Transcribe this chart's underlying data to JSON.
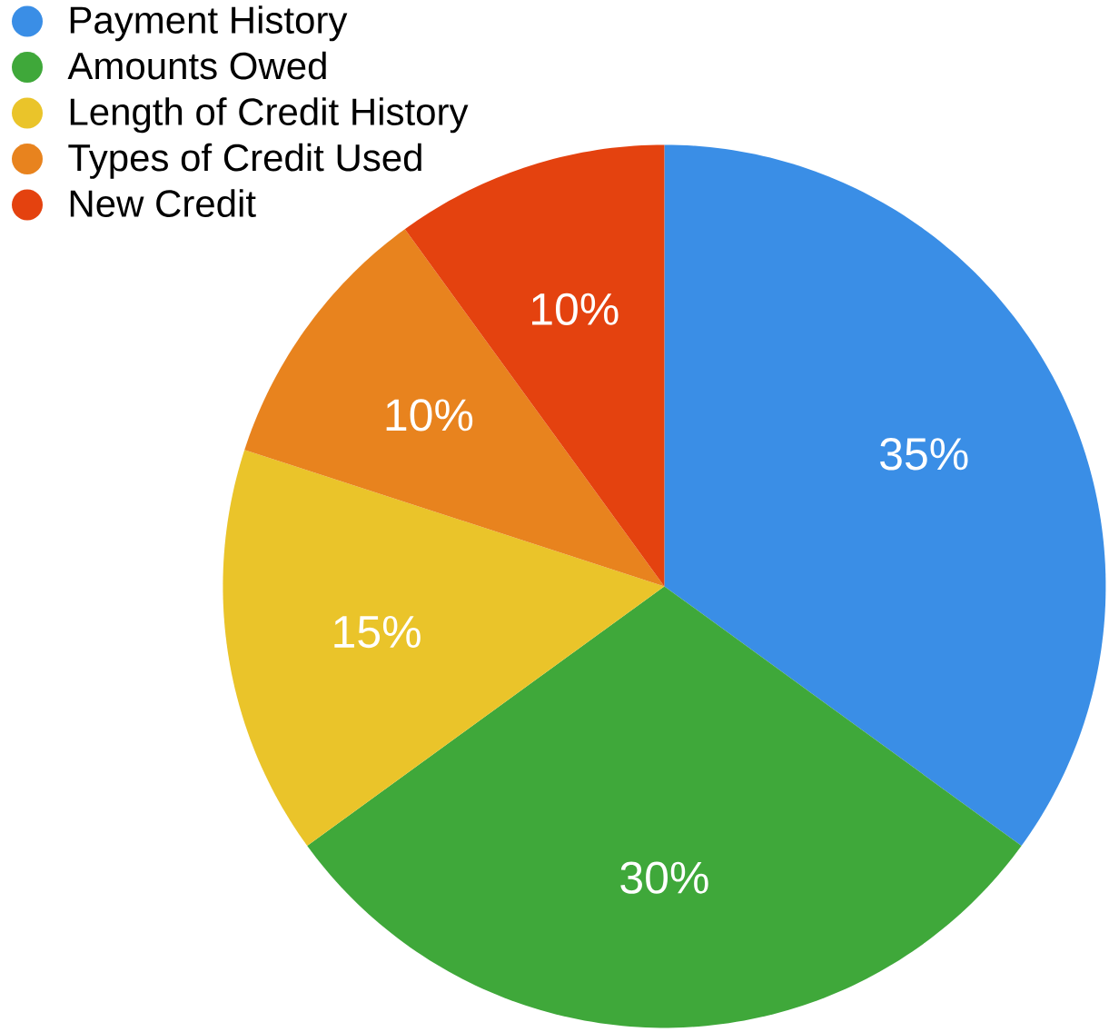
{
  "chart_data": {
    "type": "pie",
    "categories": [
      "Payment History",
      "Amounts Owed",
      "Length of Credit History",
      "Types of Credit Used",
      "New Credit"
    ],
    "values": [
      35,
      30,
      15,
      10,
      10
    ],
    "colors": [
      "#3a8ee6",
      "#3fa83a",
      "#eac42a",
      "#e8831e",
      "#e4420f"
    ],
    "value_labels": [
      "35%",
      "30%",
      "15%",
      "10%",
      "10%"
    ],
    "legend": "top left"
  }
}
